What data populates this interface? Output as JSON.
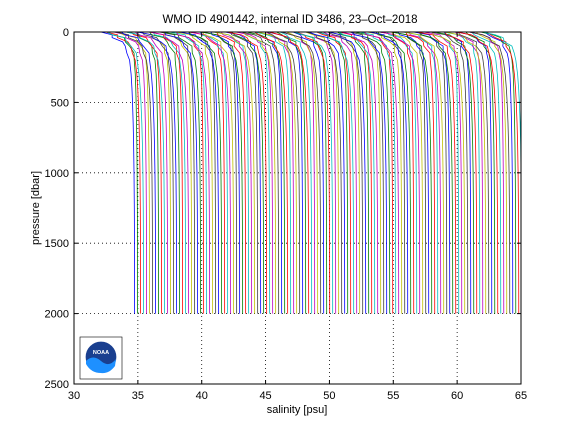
{
  "chart_data": {
    "type": "line",
    "title": "WMO ID 4901442, internal ID 3486, 23–Oct–2018",
    "xlabel": "salinity [psu]",
    "ylabel": "pressure [dbar]",
    "xlim": [
      30,
      65
    ],
    "ylim": [
      0,
      2500
    ],
    "y_reversed": true,
    "xticks": [
      30,
      35,
      40,
      45,
      50,
      55,
      60,
      65
    ],
    "yticks": [
      0,
      500,
      1000,
      1500,
      2000,
      2500
    ],
    "grid": true,
    "profiles": {
      "count": 130,
      "start_deep_salinity": 34.75,
      "offset_per_profile": 0.235,
      "surface_salinity_offset": -2.1,
      "max_pressure": 2000,
      "colors": [
        "#0000ff",
        "#008000",
        "#ff0000",
        "#00bfbf",
        "#bf00bf",
        "#bfbf00",
        "#404040"
      ]
    }
  },
  "logo": {
    "name": "noaa-logo",
    "text": "NOAA",
    "colors": {
      "outer": "#1a3f8f",
      "wave": "#1e90ff",
      "ring": "#ffffff"
    }
  }
}
